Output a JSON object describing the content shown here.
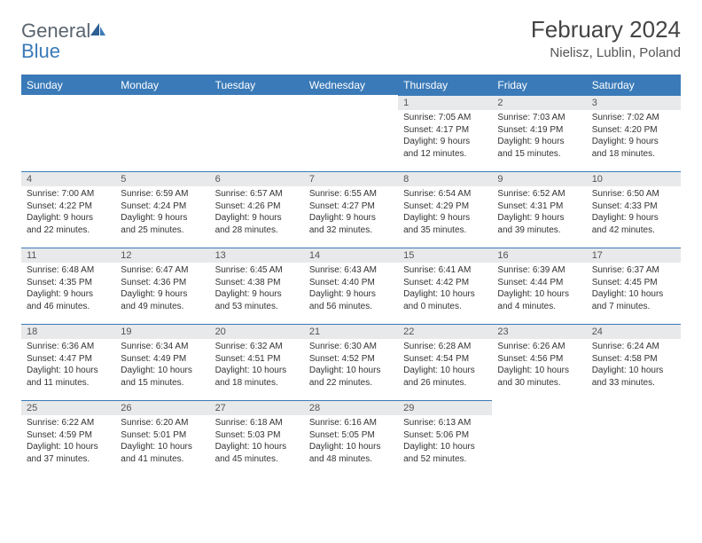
{
  "logo": {
    "word1": "General",
    "word2": "Blue"
  },
  "header": {
    "title": "February 2024",
    "location": "Nielisz, Lublin, Poland"
  },
  "colors": {
    "accent": "#3a7ab8",
    "dayHeaderBg": "#e8e9ea",
    "text": "#333333"
  },
  "weekdays": [
    "Sunday",
    "Monday",
    "Tuesday",
    "Wednesday",
    "Thursday",
    "Friday",
    "Saturday"
  ],
  "days": {
    "1": {
      "sunrise": "Sunrise: 7:05 AM",
      "sunset": "Sunset: 4:17 PM",
      "day1": "Daylight: 9 hours",
      "day2": "and 12 minutes."
    },
    "2": {
      "sunrise": "Sunrise: 7:03 AM",
      "sunset": "Sunset: 4:19 PM",
      "day1": "Daylight: 9 hours",
      "day2": "and 15 minutes."
    },
    "3": {
      "sunrise": "Sunrise: 7:02 AM",
      "sunset": "Sunset: 4:20 PM",
      "day1": "Daylight: 9 hours",
      "day2": "and 18 minutes."
    },
    "4": {
      "sunrise": "Sunrise: 7:00 AM",
      "sunset": "Sunset: 4:22 PM",
      "day1": "Daylight: 9 hours",
      "day2": "and 22 minutes."
    },
    "5": {
      "sunrise": "Sunrise: 6:59 AM",
      "sunset": "Sunset: 4:24 PM",
      "day1": "Daylight: 9 hours",
      "day2": "and 25 minutes."
    },
    "6": {
      "sunrise": "Sunrise: 6:57 AM",
      "sunset": "Sunset: 4:26 PM",
      "day1": "Daylight: 9 hours",
      "day2": "and 28 minutes."
    },
    "7": {
      "sunrise": "Sunrise: 6:55 AM",
      "sunset": "Sunset: 4:27 PM",
      "day1": "Daylight: 9 hours",
      "day2": "and 32 minutes."
    },
    "8": {
      "sunrise": "Sunrise: 6:54 AM",
      "sunset": "Sunset: 4:29 PM",
      "day1": "Daylight: 9 hours",
      "day2": "and 35 minutes."
    },
    "9": {
      "sunrise": "Sunrise: 6:52 AM",
      "sunset": "Sunset: 4:31 PM",
      "day1": "Daylight: 9 hours",
      "day2": "and 39 minutes."
    },
    "10": {
      "sunrise": "Sunrise: 6:50 AM",
      "sunset": "Sunset: 4:33 PM",
      "day1": "Daylight: 9 hours",
      "day2": "and 42 minutes."
    },
    "11": {
      "sunrise": "Sunrise: 6:48 AM",
      "sunset": "Sunset: 4:35 PM",
      "day1": "Daylight: 9 hours",
      "day2": "and 46 minutes."
    },
    "12": {
      "sunrise": "Sunrise: 6:47 AM",
      "sunset": "Sunset: 4:36 PM",
      "day1": "Daylight: 9 hours",
      "day2": "and 49 minutes."
    },
    "13": {
      "sunrise": "Sunrise: 6:45 AM",
      "sunset": "Sunset: 4:38 PM",
      "day1": "Daylight: 9 hours",
      "day2": "and 53 minutes."
    },
    "14": {
      "sunrise": "Sunrise: 6:43 AM",
      "sunset": "Sunset: 4:40 PM",
      "day1": "Daylight: 9 hours",
      "day2": "and 56 minutes."
    },
    "15": {
      "sunrise": "Sunrise: 6:41 AM",
      "sunset": "Sunset: 4:42 PM",
      "day1": "Daylight: 10 hours",
      "day2": "and 0 minutes."
    },
    "16": {
      "sunrise": "Sunrise: 6:39 AM",
      "sunset": "Sunset: 4:44 PM",
      "day1": "Daylight: 10 hours",
      "day2": "and 4 minutes."
    },
    "17": {
      "sunrise": "Sunrise: 6:37 AM",
      "sunset": "Sunset: 4:45 PM",
      "day1": "Daylight: 10 hours",
      "day2": "and 7 minutes."
    },
    "18": {
      "sunrise": "Sunrise: 6:36 AM",
      "sunset": "Sunset: 4:47 PM",
      "day1": "Daylight: 10 hours",
      "day2": "and 11 minutes."
    },
    "19": {
      "sunrise": "Sunrise: 6:34 AM",
      "sunset": "Sunset: 4:49 PM",
      "day1": "Daylight: 10 hours",
      "day2": "and 15 minutes."
    },
    "20": {
      "sunrise": "Sunrise: 6:32 AM",
      "sunset": "Sunset: 4:51 PM",
      "day1": "Daylight: 10 hours",
      "day2": "and 18 minutes."
    },
    "21": {
      "sunrise": "Sunrise: 6:30 AM",
      "sunset": "Sunset: 4:52 PM",
      "day1": "Daylight: 10 hours",
      "day2": "and 22 minutes."
    },
    "22": {
      "sunrise": "Sunrise: 6:28 AM",
      "sunset": "Sunset: 4:54 PM",
      "day1": "Daylight: 10 hours",
      "day2": "and 26 minutes."
    },
    "23": {
      "sunrise": "Sunrise: 6:26 AM",
      "sunset": "Sunset: 4:56 PM",
      "day1": "Daylight: 10 hours",
      "day2": "and 30 minutes."
    },
    "24": {
      "sunrise": "Sunrise: 6:24 AM",
      "sunset": "Sunset: 4:58 PM",
      "day1": "Daylight: 10 hours",
      "day2": "and 33 minutes."
    },
    "25": {
      "sunrise": "Sunrise: 6:22 AM",
      "sunset": "Sunset: 4:59 PM",
      "day1": "Daylight: 10 hours",
      "day2": "and 37 minutes."
    },
    "26": {
      "sunrise": "Sunrise: 6:20 AM",
      "sunset": "Sunset: 5:01 PM",
      "day1": "Daylight: 10 hours",
      "day2": "and 41 minutes."
    },
    "27": {
      "sunrise": "Sunrise: 6:18 AM",
      "sunset": "Sunset: 5:03 PM",
      "day1": "Daylight: 10 hours",
      "day2": "and 45 minutes."
    },
    "28": {
      "sunrise": "Sunrise: 6:16 AM",
      "sunset": "Sunset: 5:05 PM",
      "day1": "Daylight: 10 hours",
      "day2": "and 48 minutes."
    },
    "29": {
      "sunrise": "Sunrise: 6:13 AM",
      "sunset": "Sunset: 5:06 PM",
      "day1": "Daylight: 10 hours",
      "day2": "and 52 minutes."
    }
  },
  "layout": [
    [
      null,
      null,
      null,
      null,
      1,
      2,
      3
    ],
    [
      4,
      5,
      6,
      7,
      8,
      9,
      10
    ],
    [
      11,
      12,
      13,
      14,
      15,
      16,
      17
    ],
    [
      18,
      19,
      20,
      21,
      22,
      23,
      24
    ],
    [
      25,
      26,
      27,
      28,
      29,
      null,
      null
    ]
  ]
}
